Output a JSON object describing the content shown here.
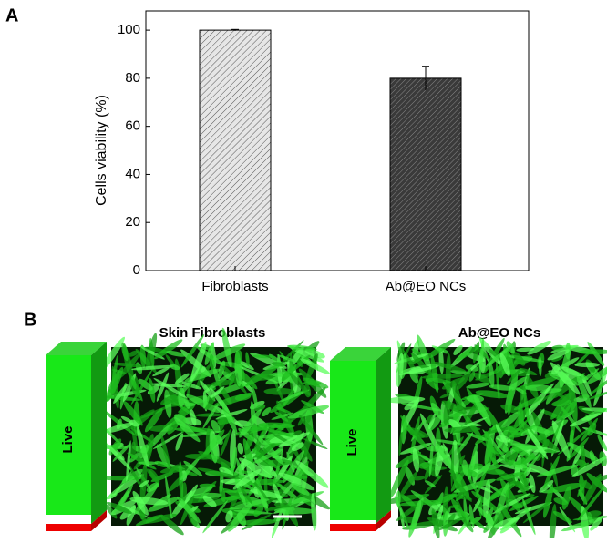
{
  "chart_data": {
    "type": "bar",
    "y_label": "Cells viability (%)",
    "categories": [
      "Fibroblasts",
      "Ab@EO NCs"
    ],
    "values": [
      100,
      80
    ],
    "errors": [
      0.3,
      5
    ],
    "colors": [
      "#d9d9d9",
      "#4a4a4a"
    ],
    "ylim": [
      0,
      108
    ],
    "yticks": [
      0,
      20,
      40,
      60,
      80,
      100
    ]
  },
  "panels": {
    "a_label": "A",
    "b_label": "B",
    "images": [
      {
        "title": "Skin Fibroblasts",
        "bar_label": "Live"
      },
      {
        "title": "Ab@EO NCs",
        "bar_label": "Live"
      }
    ]
  }
}
